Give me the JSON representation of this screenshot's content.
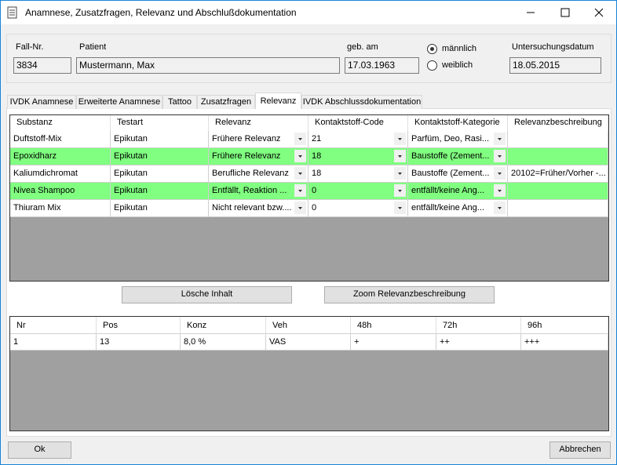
{
  "window": {
    "title": "Anamnese, Zusatzfragen, Relevanz und Abschlußdokumentation"
  },
  "patient": {
    "fields": [
      {
        "label": "Fall-Nr.",
        "value": "3834"
      },
      {
        "label": "Patient",
        "value": "Mustermann, Max"
      },
      {
        "label": "geb. am",
        "value": "17.03.1963"
      },
      {
        "label": "Untersuchungsdatum",
        "value": "18.05.2015"
      }
    ],
    "gender": [
      "männlich",
      "weiblich"
    ]
  },
  "tabs": [
    "IVDK Anamnese",
    "Erweiterte Anamnese",
    "Tattoo",
    "Zusatzfragen",
    "Relevanz",
    "IVDK Abschlussdokumentation"
  ],
  "relevance_table": {
    "headers": [
      "Substanz",
      "Testart",
      "Relevanz",
      "Kontaktstoff-Code",
      "Kontaktstoff-Kategorie",
      "Relevanzbeschreibung"
    ],
    "rows": [
      [
        "Duftstoff-Mix",
        "Epikutan",
        "Frühere Relevanz",
        "21",
        "Parfüm, Deo, Rasi...",
        ""
      ],
      [
        "Epoxidharz",
        "Epikutan",
        "Frühere Relevanz",
        "18",
        "Baustoffe (Zement...",
        ""
      ],
      [
        "Kaliumdichromat",
        "Epikutan",
        "Berufliche Relevanz",
        "18",
        "Baustoffe (Zement...",
        "20102=Früher/Vorher -..."
      ],
      [
        "Nivea Shampoo",
        "Epikutan",
        "Entfällt, Reaktion ...",
        "0",
        "entfällt/keine Ang...",
        ""
      ],
      [
        "Thiuram Mix",
        "Epikutan",
        "Nicht relevant bzw....",
        "0",
        "entfällt/keine Ang...",
        ""
      ]
    ],
    "row_colors": [
      "#ffffff",
      "#80ff80",
      "#ffffff",
      "#80ff80",
      "#ffffff"
    ]
  },
  "buttons": [
    "Lösche Inhalt",
    "Zoom Relevanzbeschreibung"
  ],
  "test_table": {
    "headers": [
      "Nr",
      "Pos",
      "Konz",
      "Veh",
      "48h",
      "72h",
      "96h"
    ],
    "rows": [
      [
        "1",
        "13",
        "8,0 %",
        "VAS",
        "+",
        "++",
        "+++"
      ]
    ]
  },
  "footer": [
    "Ok",
    "Abbrechen"
  ]
}
